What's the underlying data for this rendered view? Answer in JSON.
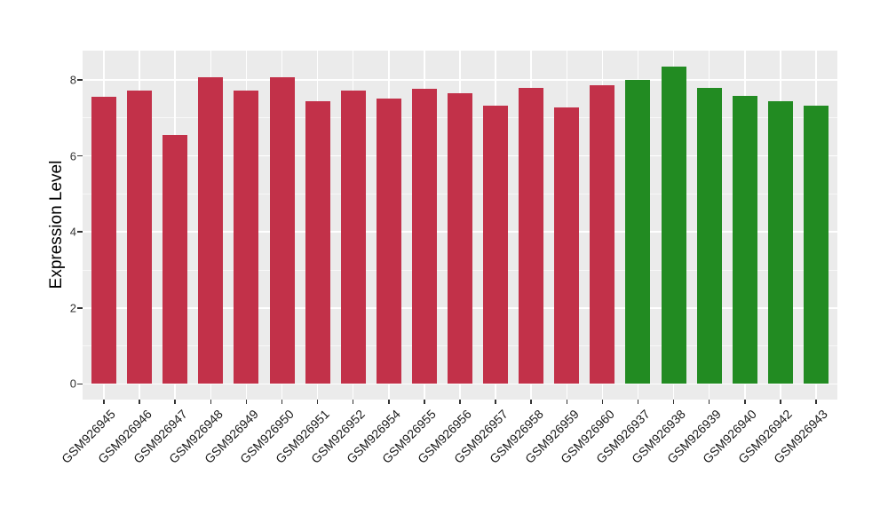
{
  "figure": {
    "background": "#FFFFFF",
    "panel_background": "#EBEBEB",
    "grid_color": "#FFFFFF",
    "tick_color": "#333333",
    "red_hex": "#C23149",
    "green_hex": "#228B22"
  },
  "chart_data": {
    "type": "bar",
    "title": "",
    "xlabel": "",
    "ylabel": "Expression Level",
    "categories": [
      "GSM926945",
      "GSM926946",
      "GSM926947",
      "GSM926948",
      "GSM926949",
      "GSM926950",
      "GSM926951",
      "GSM926952",
      "GSM926954",
      "GSM926955",
      "GSM926956",
      "GSM926957",
      "GSM926958",
      "GSM926959",
      "GSM926960",
      "GSM926937",
      "GSM926938",
      "GSM926939",
      "GSM926940",
      "GSM926942",
      "GSM926943"
    ],
    "values": [
      7.55,
      7.73,
      6.54,
      8.06,
      7.72,
      8.06,
      7.43,
      7.72,
      7.51,
      7.76,
      7.65,
      7.33,
      7.78,
      7.28,
      7.87,
      8.01,
      8.36,
      7.8,
      7.57,
      7.43,
      7.33
    ],
    "bar_colors": [
      "#C23149",
      "#C23149",
      "#C23149",
      "#C23149",
      "#C23149",
      "#C23149",
      "#C23149",
      "#C23149",
      "#C23149",
      "#C23149",
      "#C23149",
      "#C23149",
      "#C23149",
      "#C23149",
      "#C23149",
      "#228B22",
      "#228B22",
      "#228B22",
      "#228B22",
      "#228B22",
      "#228B22"
    ],
    "yticks": [
      0,
      2,
      4,
      6,
      8
    ],
    "yminor": [
      1,
      3,
      5,
      7
    ],
    "ylim": [
      -0.44,
      8.79
    ],
    "grid": true,
    "legend": false
  }
}
